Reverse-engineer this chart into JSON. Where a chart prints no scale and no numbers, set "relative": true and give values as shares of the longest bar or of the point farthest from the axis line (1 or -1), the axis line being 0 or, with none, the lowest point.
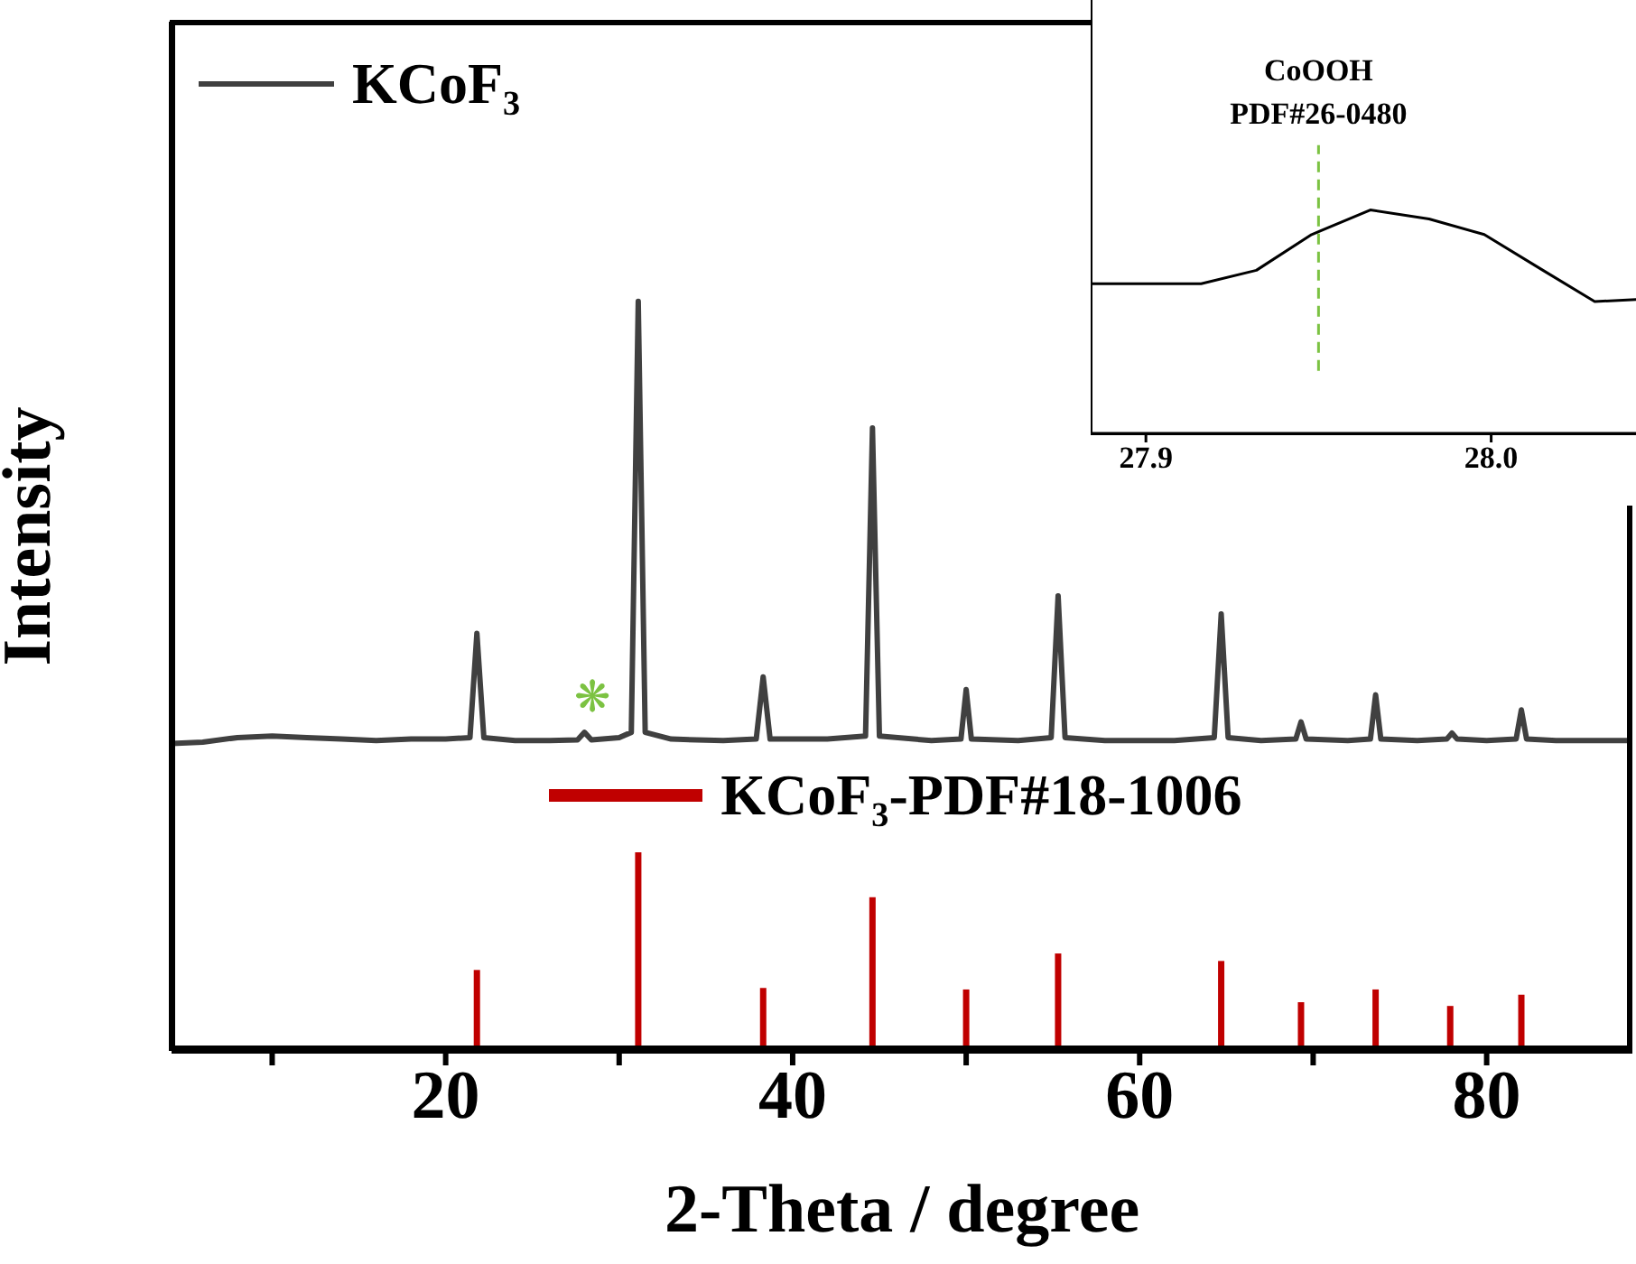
{
  "chart_data": [
    {
      "type": "line",
      "xlabel": "2-Theta / degree",
      "ylabel": "Intensity",
      "relative": true,
      "xlim": [
        4.2,
        88.4
      ],
      "xticks": [
        {
          "value": 10,
          "label": null
        },
        20,
        {
          "value": 30,
          "label": null
        },
        40,
        {
          "value": 50,
          "label": null
        },
        60,
        {
          "value": 70,
          "label": null
        },
        80
      ],
      "legend": "top left",
      "grid": false,
      "marker": "none",
      "line_style": "solid",
      "annotations": [
        "❋"
      ],
      "series": [
        {
          "name": "KCoF₃",
          "color": "#404040",
          "x": [
            4.2,
            6,
            8,
            10,
            12,
            14,
            16,
            18,
            20,
            21.4,
            21.8,
            22.2,
            24,
            26,
            27.6,
            28,
            28.4,
            30,
            30.7,
            31.1,
            31.5,
            33,
            36,
            37.9,
            38.3,
            38.7,
            42,
            44.2,
            44.6,
            45,
            48,
            49.7,
            50.0,
            50.3,
            53,
            54.9,
            55.3,
            55.7,
            58,
            62,
            64.3,
            64.7,
            65.1,
            67,
            69.0,
            69.3,
            69.6,
            72,
            73.3,
            73.6,
            73.9,
            76,
            77.7,
            78,
            78.3,
            80,
            81.7,
            82.0,
            82.3,
            84,
            88.4
          ],
          "values": [
            0.41,
            0.412,
            0.418,
            0.42,
            0.418,
            0.416,
            0.414,
            0.416,
            0.416,
            0.418,
            0.557,
            0.418,
            0.414,
            0.414,
            0.415,
            0.425,
            0.415,
            0.418,
            0.425,
            1.0,
            0.425,
            0.416,
            0.414,
            0.416,
            0.499,
            0.416,
            0.416,
            0.42,
            0.831,
            0.42,
            0.414,
            0.416,
            0.482,
            0.416,
            0.414,
            0.418,
            0.607,
            0.418,
            0.414,
            0.414,
            0.418,
            0.583,
            0.418,
            0.414,
            0.416,
            0.439,
            0.416,
            0.414,
            0.416,
            0.475,
            0.416,
            0.414,
            0.416,
            0.424,
            0.416,
            0.414,
            0.416,
            0.455,
            0.416,
            0.414,
            0.414
          ]
        },
        {
          "name": "KCoF₃-PDF#18-1006",
          "type": "bar",
          "color": "#c00000",
          "x": [
            21.8,
            31.1,
            38.3,
            44.6,
            50.0,
            55.3,
            64.7,
            69.3,
            73.6,
            77.9,
            82.0
          ],
          "values": [
            0.108,
            0.265,
            0.084,
            0.205,
            0.082,
            0.13,
            0.12,
            0.065,
            0.082,
            0.06,
            0.075
          ]
        }
      ]
    },
    {
      "type": "line",
      "relative": true,
      "xlim": [
        27.884,
        28.043
      ],
      "xticks": [
        27.9,
        {
          "value": 28,
          "label": "28.0"
        }
      ],
      "marker": "none",
      "ref_lines": [
        {
          "axis": "x",
          "value": 27.95,
          "label": "CoOOH\nPDF#26-0480",
          "color": "#7cc242",
          "line_style": "dashed"
        }
      ],
      "series": [
        {
          "color": "#000000",
          "x": [
            27.884,
            27.916,
            27.932,
            27.948,
            27.965,
            27.982,
            27.998,
            28.015,
            28.03,
            28.043
          ],
          "values": [
            0.67,
            0.67,
            0.73,
            0.89,
            1,
            0.96,
            0.89,
            0.73,
            0.59,
            0.6
          ]
        }
      ]
    }
  ]
}
